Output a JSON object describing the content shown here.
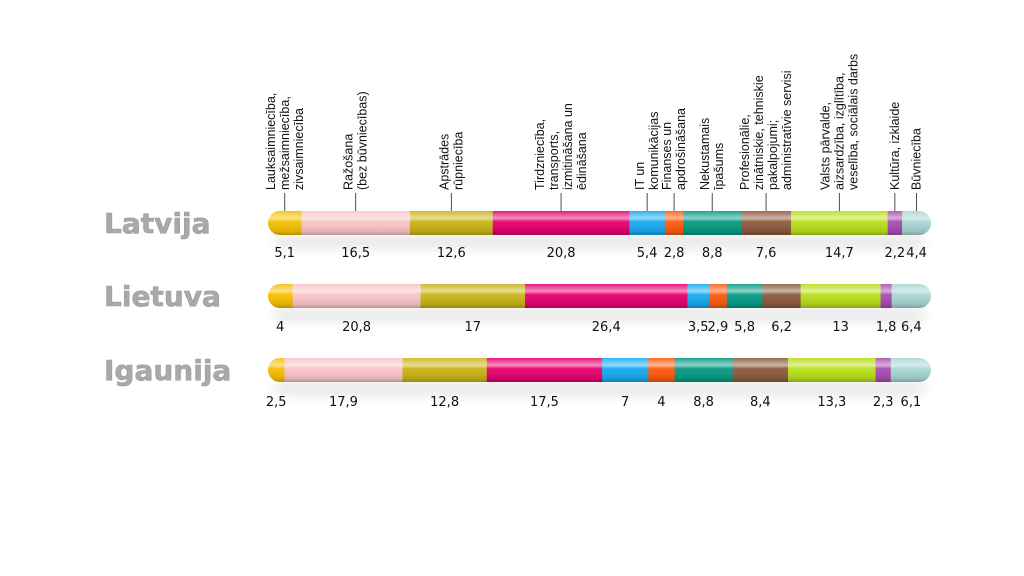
{
  "chart_data": {
    "type": "bar",
    "orientation": "horizontal-stacked-100",
    "categories": [
      [
        "Lauksaimniecība,",
        "mežsaimniecība,",
        "zivsaimniecība"
      ],
      [
        "Ražošana",
        "(bez būvniecības)"
      ],
      [
        "Apstrādes",
        "rūpniecība"
      ],
      [
        "Tirdzniecība,",
        "transports,",
        "izmitināšana un",
        "ēdināšana"
      ],
      [
        "IT un",
        "komunikācijas"
      ],
      [
        "Finanses un",
        "apdrošināšana"
      ],
      [
        "Nekustamais",
        "īpašums"
      ],
      [
        "Profesionālie,",
        "zinātniskie, tehniskie",
        "pakalpojumi;",
        "administratīvie servisi"
      ],
      [
        "Valsts pārvalde,",
        "aizsardzība, izglītība,",
        "veselība, sociālais darbs"
      ],
      [
        "Kultūra, izklaide"
      ],
      [
        "Būvniecība"
      ]
    ],
    "colors": [
      "#f6bf00",
      "#fbc4c8",
      "#c9b417",
      "#e6006f",
      "#18aaf0",
      "#ff5a0e",
      "#079a83",
      "#8d5a3e",
      "#b9de1a",
      "#a84db0",
      "#a8d6d3"
    ],
    "series": [
      {
        "name": "Latvija",
        "values": [
          5.1,
          16.5,
          12.6,
          20.8,
          5.4,
          2.8,
          8.8,
          7.6,
          14.7,
          2.2,
          4.4
        ],
        "labels": [
          "5,1",
          "16,5",
          "12,6",
          "20,8",
          "5,4",
          "2,8",
          "8,8",
          "7,6",
          "14,7",
          "2,2",
          "4,4"
        ]
      },
      {
        "name": "Lietuva",
        "values": [
          4,
          20.8,
          17,
          26.4,
          3.5,
          2.9,
          5.8,
          6.2,
          13,
          1.8,
          6.4
        ],
        "labels": [
          "4",
          "20,8",
          "17",
          "26,4",
          "3,5",
          "2,9",
          "5,8",
          "6,2",
          "13",
          "1,8",
          "6,4"
        ]
      },
      {
        "name": "Igaunija",
        "values": [
          2.5,
          17.9,
          12.8,
          17.5,
          7,
          4,
          8.8,
          8.4,
          13.3,
          2.3,
          6.1
        ],
        "labels": [
          "2,5",
          "17,9",
          "12,8",
          "17,5",
          "7",
          "4",
          "8,8",
          "8,4",
          "13,3",
          "2,3",
          "6,1"
        ]
      }
    ],
    "legend": "category labels above top bar",
    "grid": false
  }
}
